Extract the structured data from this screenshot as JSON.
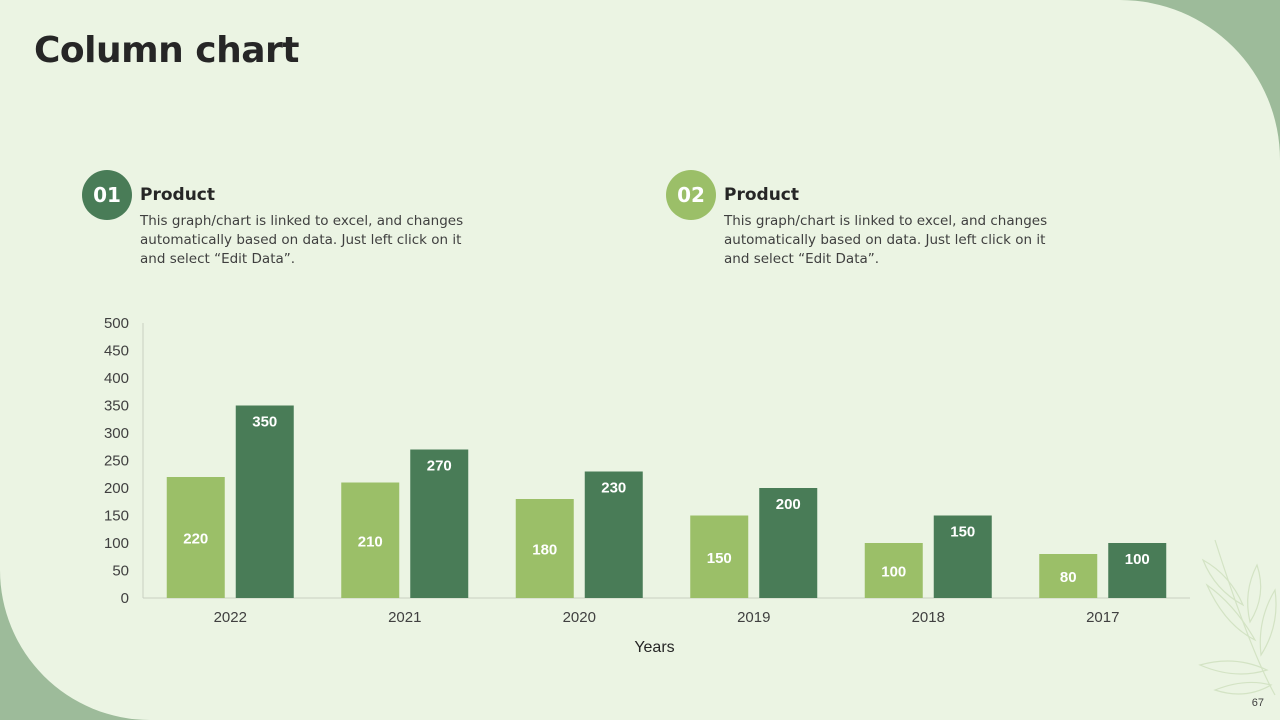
{
  "title": "Column chart",
  "blocks": [
    {
      "number": "01",
      "heading": "Product",
      "description": "This graph/chart is linked to excel, and changes automatically based on data. Just left click on it and select “Edit Data”."
    },
    {
      "number": "02",
      "heading": "Product",
      "description": "This graph/chart is linked to excel, and changes automatically based on data. Just left click on it and select “Edit Data”."
    }
  ],
  "colors": {
    "series1": "#9bbf68",
    "series2": "#497c57",
    "badge1": "#497c57",
    "badge2": "#9bbf68",
    "frame": "#9dbb9a",
    "background": "#ebf4e3"
  },
  "page_number": "67",
  "chart_data": {
    "type": "bar",
    "title": "",
    "xlabel": "Years",
    "ylabel": "",
    "categories": [
      "2022",
      "2021",
      "2020",
      "2019",
      "2018",
      "2017"
    ],
    "series": [
      {
        "name": "Product 01",
        "values": [
          220,
          210,
          180,
          150,
          100,
          80
        ]
      },
      {
        "name": "Product 02",
        "values": [
          350,
          270,
          230,
          200,
          150,
          100
        ]
      }
    ],
    "ylim": [
      0,
      500
    ],
    "yticks": [
      "0",
      "50",
      "100",
      "150",
      "200",
      "250",
      "300",
      "350",
      "400",
      "450",
      "500"
    ],
    "grid": false,
    "legend": "none"
  }
}
